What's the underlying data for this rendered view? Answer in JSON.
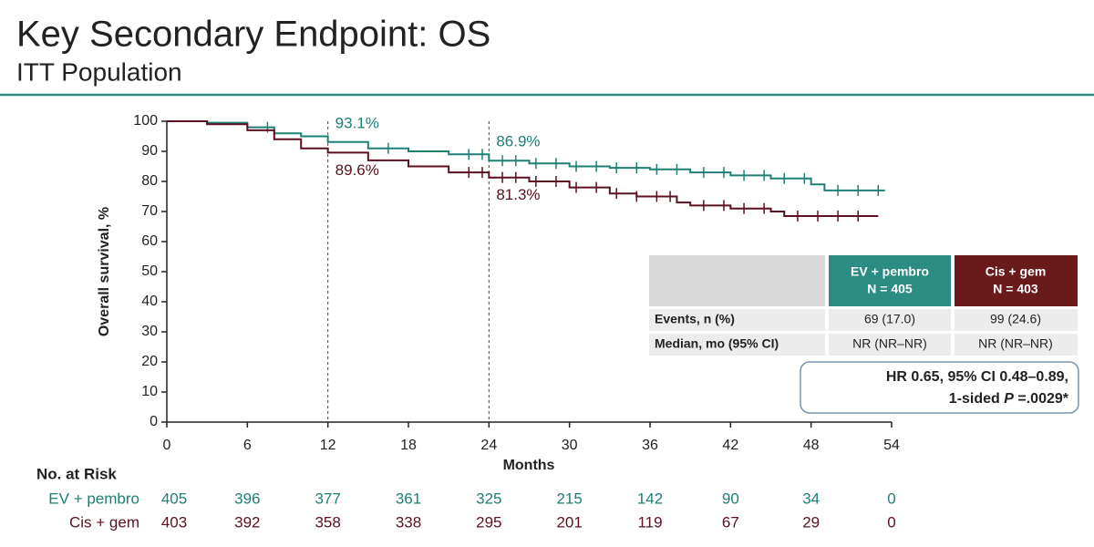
{
  "chart_data": {
    "type": "kaplan-meier",
    "title": "Key Secondary Endpoint: OS",
    "subtitle": "ITT Population",
    "y_label": "Overall survival, %",
    "x_label": "Months",
    "xlim": [
      0,
      54
    ],
    "xticks": [
      0,
      6,
      12,
      18,
      24,
      30,
      36,
      42,
      48,
      54
    ],
    "ylim": [
      0,
      100
    ],
    "yticks": [
      0,
      10,
      20,
      30,
      40,
      50,
      60,
      70,
      80,
      90,
      100
    ],
    "series": [
      {
        "name": "EV + pembro",
        "color": "#1e8075",
        "x": [
          0,
          3,
          6,
          8,
          10,
          12,
          15,
          18,
          21,
          24,
          27,
          30,
          33,
          36,
          39,
          42,
          45,
          48,
          49,
          53.5
        ],
        "values": [
          100,
          99.5,
          98,
          96,
          95,
          93.1,
          91,
          90,
          89,
          86.9,
          86,
          85,
          84.5,
          84,
          83,
          82,
          81,
          79,
          77,
          77
        ],
        "censored_x": [
          7.5,
          16.5,
          22.5,
          23.5,
          25,
          26,
          27.5,
          29,
          30.5,
          32,
          33.5,
          35,
          36.5,
          38,
          40,
          41.5,
          43,
          44.5,
          46,
          47.5,
          50,
          51.5,
          53
        ],
        "at_risk": [
          405,
          396,
          377,
          361,
          325,
          215,
          142,
          90,
          34,
          0
        ]
      },
      {
        "name": "Cis + gem",
        "color": "#5c1020",
        "x": [
          0,
          3,
          6,
          8,
          10,
          12,
          15,
          18,
          21,
          24,
          27,
          30,
          33,
          35,
          38,
          39,
          42,
          45,
          46,
          53
        ],
        "values": [
          100,
          99,
          97,
          94,
          91,
          89.6,
          87,
          85,
          83,
          81.3,
          80,
          78,
          76,
          75,
          73,
          72,
          71,
          70,
          68.5,
          68.5
        ],
        "censored_x": [
          22.5,
          23.5,
          25,
          26,
          27.5,
          29,
          30.5,
          32,
          33.5,
          35,
          36.5,
          37.5,
          40,
          41.5,
          43,
          44.5,
          47,
          48.5,
          50,
          51.5
        ],
        "at_risk": [
          403,
          392,
          358,
          338,
          295,
          201,
          119,
          67,
          29,
          0
        ]
      }
    ],
    "annotations": [
      {
        "x": 12,
        "series": 0,
        "value": 93.1,
        "label": "93.1%"
      },
      {
        "x": 12,
        "series": 1,
        "value": 89.6,
        "label": "89.6%"
      },
      {
        "x": 24,
        "series": 0,
        "value": 86.9,
        "label": "86.9%"
      },
      {
        "x": 24,
        "series": 1,
        "value": 81.3,
        "label": "81.3%"
      }
    ],
    "risk_title": "No. at Risk",
    "table": {
      "header": [
        [
          "EV + pembro",
          "N = 405"
        ],
        [
          "Cis + gem",
          "N = 403"
        ]
      ],
      "rows": [
        [
          "Events, n (%)",
          "69 (17.0)",
          "99 (24.6)"
        ],
        [
          "Median, mo (95% CI)",
          "NR (NR–NR)",
          "NR (NR–NR)"
        ]
      ]
    },
    "hr_box": [
      "HR 0.65, 95% CI 0.48–0.89,",
      "1-sided ",
      "P",
      " =.0029*"
    ]
  }
}
